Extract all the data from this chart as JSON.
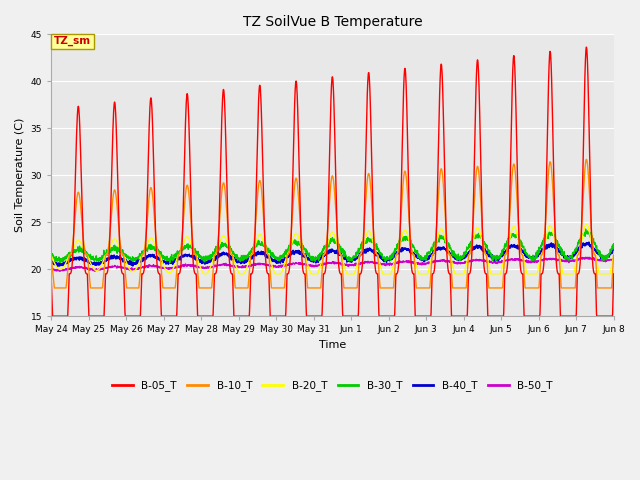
{
  "title": "TZ SoilVue B Temperature",
  "ylabel": "Soil Temperature (C)",
  "xlabel": "Time",
  "ylim": [
    15,
    45
  ],
  "yticks": [
    15,
    20,
    25,
    30,
    35,
    40,
    45
  ],
  "x_labels": [
    "May 24",
    "May 25",
    "May 26",
    "May 27",
    "May 28",
    "May 29",
    "May 30",
    "May 31",
    "Jun 1",
    "Jun 2",
    "Jun 3",
    "Jun 4",
    "Jun 5",
    "Jun 6",
    "Jun 7",
    "Jun 8"
  ],
  "series": {
    "B-05_T": {
      "color": "#ff0000",
      "linewidth": 1.0
    },
    "B-10_T": {
      "color": "#ff8c00",
      "linewidth": 1.0
    },
    "B-20_T": {
      "color": "#ffff00",
      "linewidth": 1.0
    },
    "B-30_T": {
      "color": "#00cc00",
      "linewidth": 1.0
    },
    "B-40_T": {
      "color": "#0000cc",
      "linewidth": 1.2
    },
    "B-50_T": {
      "color": "#cc00cc",
      "linewidth": 1.0
    }
  },
  "legend_label": "TZ_sm",
  "legend_box_color": "#ffff99",
  "legend_text_color": "#cc0000",
  "fig_bg_color": "#f0f0f0",
  "plot_bg_color": "#e8e8e8",
  "grid_color": "#ffffff"
}
